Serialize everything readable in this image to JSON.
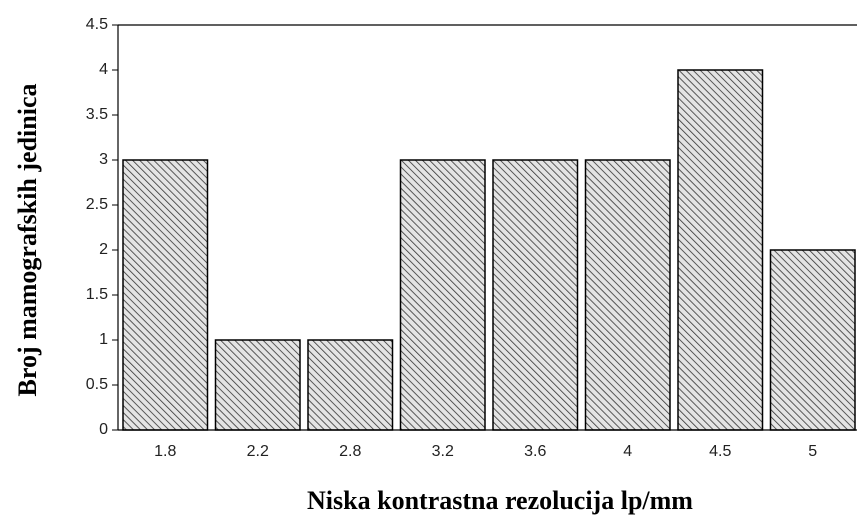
{
  "chart_data": {
    "type": "bar",
    "x_label": "Niska kontrastna rezolucija lp/mm",
    "y_label": "Broj mamografskih jedinica",
    "categories": [
      "1.8",
      "2.2",
      "2.8",
      "3.2",
      "3.6",
      "4",
      "4.5",
      "5"
    ],
    "values": [
      3,
      1,
      1,
      3,
      3,
      3,
      4,
      2
    ],
    "ylim": [
      0,
      4.5
    ],
    "yticks": [
      0,
      0.5,
      1,
      1.5,
      2,
      2.5,
      3,
      3.5,
      4,
      4.5
    ]
  }
}
